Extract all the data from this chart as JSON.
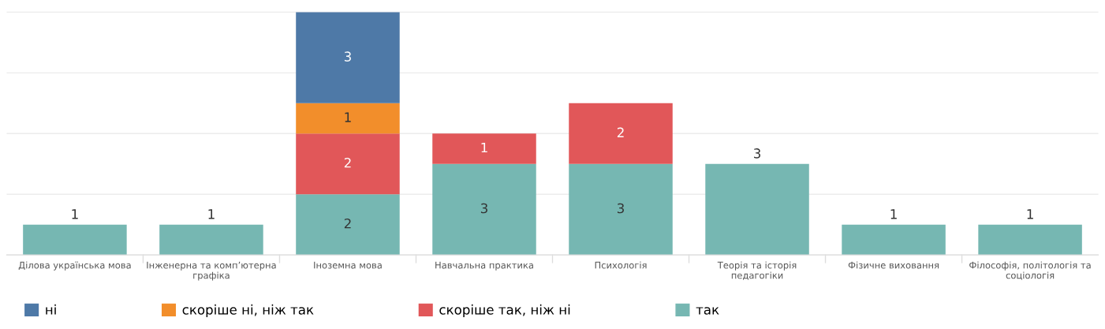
{
  "chart_data": {
    "type": "bar",
    "stacked": true,
    "data_labels": true,
    "grid": "y",
    "legend": "bottom",
    "categories": [
      "Ділова українська мова",
      "Інженерна та комп’ютерна графіка",
      "Іноземна мова",
      "Навчальна практика",
      "Психологія",
      "Теорія та історія педагогіки",
      "Фізичне виховання",
      "Філософія, політологія та соціологія"
    ],
    "series": [
      {
        "name": "так",
        "color": "#76b7b2",
        "values": [
          1,
          1,
          2,
          3,
          3,
          3,
          1,
          1
        ]
      },
      {
        "name": "скоріше так, ніж ні",
        "color": "#e15759",
        "values": [
          null,
          null,
          2,
          1,
          2,
          null,
          null,
          null
        ]
      },
      {
        "name": "скоріше ні, ніж так",
        "color": "#f28e2b",
        "values": [
          null,
          null,
          1,
          null,
          null,
          null,
          null,
          null
        ]
      },
      {
        "name": "ні",
        "color": "#4e79a7",
        "values": [
          null,
          null,
          3,
          null,
          null,
          null,
          null,
          null
        ]
      }
    ],
    "yticks": [
      {
        "value": 0,
        "label": null
      },
      {
        "value": 2,
        "label": null
      },
      {
        "value": 4,
        "label": null
      },
      {
        "value": 6,
        "label": null
      },
      {
        "value": 8,
        "label": null
      }
    ],
    "tick_labels": "x"
  }
}
